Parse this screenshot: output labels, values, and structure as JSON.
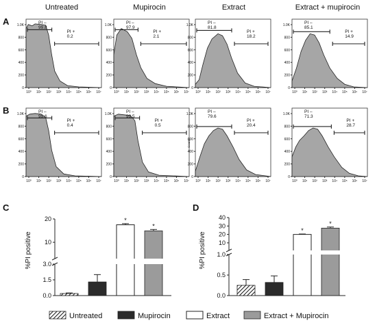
{
  "column_headers": [
    "Untreated",
    "Mupirocin",
    "Extract",
    "Extract + mupirocin"
  ],
  "flow_rows": [
    {
      "label": "A",
      "panels": [
        {
          "pi_minus_label": "PI –",
          "pi_minus_value": "99.8",
          "pi_plus_label": "PI +",
          "pi_plus_value": "0.2"
        },
        {
          "pi_minus_label": "PI –",
          "pi_minus_value": "97.9",
          "pi_plus_label": "PI +",
          "pi_plus_value": "2.1"
        },
        {
          "pi_minus_label": "PI –",
          "pi_minus_value": "81.8",
          "pi_plus_label": "PI +",
          "pi_plus_value": "18.2"
        },
        {
          "pi_minus_label": "PI –",
          "pi_minus_value": "85.1",
          "pi_plus_label": "PI +",
          "pi_plus_value": "14.9"
        }
      ]
    },
    {
      "label": "B",
      "panels": [
        {
          "pi_minus_label": "PI –",
          "pi_minus_value": "99.6",
          "pi_plus_label": "PI +",
          "pi_plus_value": "0.4"
        },
        {
          "pi_minus_label": "PI –",
          "pi_minus_value": "99.5",
          "pi_plus_label": "PI +",
          "pi_plus_value": "0.5"
        },
        {
          "pi_minus_label": "PI –",
          "pi_minus_value": "79.6",
          "pi_plus_label": "PI +",
          "pi_plus_value": "20.4"
        },
        {
          "pi_minus_label": "PI –",
          "pi_minus_value": "71.3",
          "pi_plus_label": "PI +",
          "pi_plus_value": "28.7"
        }
      ]
    }
  ],
  "histogram_axis": {
    "y_ticks": [
      "0",
      "200",
      "400",
      "600",
      "800",
      "1.0K"
    ],
    "x_ticks": [
      "10⁰",
      "10¹",
      "10²",
      "10³",
      "10⁴",
      "10⁵",
      "10⁶",
      "10⁷"
    ],
    "y_label_shown_on_one_panel": "Count"
  },
  "chart_data": [
    {
      "type": "bar",
      "panel_label": "C",
      "ylabel": "%PI positive",
      "categories": [
        "Untreated",
        "Mupirocin",
        "Extract",
        "Extract + Mupirocin"
      ],
      "values": [
        0.2,
        1.3,
        17.5,
        14.9
      ],
      "errors": [
        0.05,
        0.7,
        0.5,
        0.6
      ],
      "significance": [
        "",
        "",
        "*",
        "*"
      ],
      "axis_break": {
        "lower_range": [
          0,
          3.0
        ],
        "upper_range": [
          3.0,
          20
        ]
      },
      "lower_ticks": [
        "0.0",
        "1.5",
        "3.0"
      ],
      "upper_ticks": [
        "10",
        "20"
      ]
    },
    {
      "type": "bar",
      "panel_label": "D",
      "ylabel": "%PI positive",
      "categories": [
        "Untreated",
        "Mupirocin",
        "Extract",
        "Extract + Mupirocin"
      ],
      "values": [
        0.25,
        0.32,
        20.0,
        27.5
      ],
      "errors": [
        0.14,
        0.16,
        0.5,
        1.3
      ],
      "significance": [
        "",
        "",
        "*",
        "*"
      ],
      "axis_break": {
        "lower_range": [
          0,
          1.0
        ],
        "upper_range": [
          1.0,
          40
        ]
      },
      "lower_ticks": [
        "0.0",
        "0.5",
        "1.0"
      ],
      "upper_ticks": [
        "10",
        "20",
        "30",
        "40"
      ]
    }
  ],
  "legend": [
    "Untreated",
    "Mupirocin",
    "Extract",
    "Extract + Mupirocin"
  ]
}
